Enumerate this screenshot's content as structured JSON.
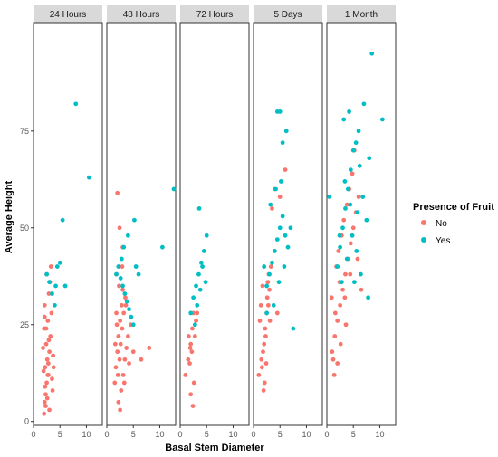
{
  "chart_data": {
    "type": "scatter",
    "facets": [
      "24 Hours",
      "48 Hours",
      "72 Hours",
      "5 Days",
      "1 Month"
    ],
    "xlabel": "Basal Stem Diameter",
    "ylabel": "Average Height",
    "xlim": [
      0,
      13
    ],
    "ylim": [
      -1,
      103
    ],
    "x_ticks": [
      0,
      5,
      10
    ],
    "y_ticks": [
      0,
      25,
      50,
      75
    ],
    "legend": {
      "title": "Presence of Fruit",
      "placement": "right"
    },
    "series": [
      {
        "name": "No",
        "color": "#F8766D",
        "points": {
          "24 Hours": [
            [
              2.0,
              2
            ],
            [
              2.1,
              5
            ],
            [
              2.3,
              7
            ],
            [
              2.5,
              10
            ],
            [
              2.8,
              12
            ],
            [
              2.2,
              14
            ],
            [
              2.6,
              16
            ],
            [
              3.0,
              18
            ],
            [
              2.4,
              20
            ],
            [
              3.2,
              22
            ],
            [
              2.0,
              24
            ],
            [
              2.7,
              26
            ],
            [
              3.4,
              28
            ],
            [
              2.1,
              30
            ],
            [
              2.9,
              33
            ],
            [
              3.1,
              36
            ],
            [
              2.5,
              38
            ],
            [
              3.3,
              40
            ],
            [
              2.2,
              9
            ],
            [
              2.8,
              15
            ],
            [
              3.5,
              11
            ],
            [
              1.8,
              19
            ],
            [
              3.6,
              8
            ],
            [
              2.3,
              4
            ],
            [
              2.9,
              21
            ],
            [
              1.9,
              13
            ],
            [
              3.7,
              17
            ],
            [
              2.6,
              6
            ],
            [
              3.0,
              3
            ],
            [
              2.4,
              24
            ],
            [
              2.1,
              27
            ],
            [
              3.8,
              14
            ],
            [
              2.7,
              12
            ]
          ],
          "48 Hours": [
            [
              1.5,
              10
            ],
            [
              1.7,
              14
            ],
            [
              2.0,
              18
            ],
            [
              2.2,
              22
            ],
            [
              2.5,
              26
            ],
            [
              2.8,
              30
            ],
            [
              3.0,
              34
            ],
            [
              1.8,
              38
            ],
            [
              2.1,
              12
            ],
            [
              2.4,
              16
            ],
            [
              2.6,
              20
            ],
            [
              2.9,
              24
            ],
            [
              3.2,
              28
            ],
            [
              3.5,
              32
            ],
            [
              1.6,
              20
            ],
            [
              1.9,
              25
            ],
            [
              2.3,
              35
            ],
            [
              2.7,
              8
            ],
            [
              3.1,
              12
            ],
            [
              3.4,
              16
            ],
            [
              3.7,
              19
            ],
            [
              4.0,
              22
            ],
            [
              4.5,
              25
            ],
            [
              5.0,
              18
            ],
            [
              6.5,
              16
            ],
            [
              8.0,
              19
            ],
            [
              2.0,
              59
            ],
            [
              2.4,
              50
            ],
            [
              3.0,
              45
            ],
            [
              2.2,
              5
            ],
            [
              2.5,
              3
            ],
            [
              3.6,
              30
            ],
            [
              4.2,
              15
            ],
            [
              1.8,
              28
            ],
            [
              2.9,
              40
            ],
            [
              3.3,
              10
            ]
          ],
          "72 Hours": [
            [
              1.0,
              12
            ],
            [
              1.5,
              16
            ],
            [
              2.0,
              20
            ],
            [
              2.3,
              24
            ],
            [
              2.5,
              28
            ],
            [
              1.8,
              15
            ],
            [
              2.8,
              22
            ],
            [
              3.0,
              26
            ],
            [
              2.2,
              18
            ],
            [
              2.6,
              10
            ],
            [
              2.0,
              7
            ],
            [
              2.4,
              4
            ],
            [
              1.6,
              22
            ],
            [
              3.2,
              28
            ],
            [
              1.9,
              19
            ]
          ],
          "5 Days": [
            [
              1.0,
              12
            ],
            [
              1.5,
              16
            ],
            [
              2.0,
              20
            ],
            [
              2.2,
              24
            ],
            [
              2.5,
              28
            ],
            [
              2.8,
              30
            ],
            [
              3.0,
              34
            ],
            [
              1.8,
              18
            ],
            [
              2.3,
              22
            ],
            [
              1.2,
              26
            ],
            [
              1.6,
              14
            ],
            [
              2.1,
              10
            ],
            [
              2.7,
              36
            ],
            [
              3.3,
              40
            ],
            [
              3.5,
              55
            ],
            [
              4.0,
              60
            ],
            [
              5.0,
              58
            ],
            [
              6.0,
              65
            ],
            [
              1.4,
              30
            ],
            [
              2.6,
              32
            ],
            [
              3.1,
              26
            ],
            [
              1.9,
              8
            ],
            [
              2.4,
              15
            ],
            [
              2.9,
              38
            ],
            [
              4.5,
              28
            ],
            [
              1.7,
              35
            ]
          ],
          "1 Month": [
            [
              1.0,
              18
            ],
            [
              1.5,
              22
            ],
            [
              2.0,
              26
            ],
            [
              2.5,
              30
            ],
            [
              3.0,
              34
            ],
            [
              3.5,
              38
            ],
            [
              4.0,
              42
            ],
            [
              4.5,
              46
            ],
            [
              5.0,
              50
            ],
            [
              5.5,
              54
            ],
            [
              6.0,
              58
            ],
            [
              1.8,
              40
            ],
            [
              2.2,
              44
            ],
            [
              2.8,
              48
            ],
            [
              3.2,
              52
            ],
            [
              3.8,
              56
            ],
            [
              4.2,
              60
            ],
            [
              4.8,
              64
            ],
            [
              5.2,
              70
            ],
            [
              1.2,
              16
            ],
            [
              1.6,
              28
            ],
            [
              2.4,
              36
            ],
            [
              3.4,
              32
            ],
            [
              4.4,
              38
            ],
            [
              5.8,
              42
            ],
            [
              2.6,
              20
            ],
            [
              3.6,
              25
            ],
            [
              0.9,
              32
            ],
            [
              6.5,
              34
            ],
            [
              2.0,
              15
            ],
            [
              1.4,
              12
            ]
          ]
        }
      },
      {
        "name": "Yes",
        "color": "#00BFC4",
        "points": {
          "24 Hours": [
            [
              2.5,
              38
            ],
            [
              3.0,
              36
            ],
            [
              3.5,
              33
            ],
            [
              4.0,
              30
            ],
            [
              4.5,
              40
            ],
            [
              5.0,
              41
            ],
            [
              5.5,
              52
            ],
            [
              4.2,
              35
            ],
            [
              6.0,
              35
            ],
            [
              8.0,
              82
            ],
            [
              10.5,
              63
            ]
          ],
          "48 Hours": [
            [
              1.8,
              38
            ],
            [
              2.2,
              40
            ],
            [
              2.6,
              37
            ],
            [
              3.0,
              35
            ],
            [
              3.4,
              33
            ],
            [
              3.8,
              31
            ],
            [
              4.2,
              29
            ],
            [
              4.6,
              27
            ],
            [
              5.0,
              25
            ],
            [
              5.5,
              40
            ],
            [
              6.0,
              38
            ],
            [
              3.2,
              45
            ],
            [
              4.0,
              48
            ],
            [
              5.2,
              52
            ],
            [
              10.5,
              45
            ],
            [
              13.0,
              60
            ],
            [
              2.8,
              42
            ]
          ],
          "72 Hours": [
            [
              2.0,
              28
            ],
            [
              2.5,
              32
            ],
            [
              3.0,
              35
            ],
            [
              3.5,
              38
            ],
            [
              4.0,
              41
            ],
            [
              4.5,
              44
            ],
            [
              5.0,
              48
            ],
            [
              3.2,
              30
            ],
            [
              3.8,
              34
            ],
            [
              4.2,
              40
            ],
            [
              4.8,
              36
            ],
            [
              2.8,
              25
            ],
            [
              3.6,
              55
            ]
          ],
          "5 Days": [
            [
              2.5,
              35
            ],
            [
              3.0,
              38
            ],
            [
              3.5,
              41
            ],
            [
              4.0,
              44
            ],
            [
              4.5,
              47
            ],
            [
              5.0,
              50
            ],
            [
              5.5,
              53
            ],
            [
              6.0,
              48
            ],
            [
              6.5,
              45
            ],
            [
              3.2,
              56
            ],
            [
              4.2,
              60
            ],
            [
              5.2,
              62
            ],
            [
              5.5,
              72
            ],
            [
              4.5,
              80
            ],
            [
              5.0,
              80
            ],
            [
              6.2,
              75
            ],
            [
              7.0,
              50
            ],
            [
              2.0,
              40
            ],
            [
              3.8,
              30
            ],
            [
              4.8,
              36
            ],
            [
              7.5,
              24
            ],
            [
              2.5,
              28
            ],
            [
              5.8,
              40
            ]
          ],
          "1 Month": [
            [
              2.0,
              40
            ],
            [
              2.5,
              45
            ],
            [
              3.0,
              50
            ],
            [
              3.5,
              55
            ],
            [
              4.0,
              60
            ],
            [
              4.5,
              65
            ],
            [
              5.0,
              70
            ],
            [
              5.5,
              72
            ],
            [
              6.0,
              75
            ],
            [
              3.2,
              78
            ],
            [
              4.2,
              80
            ],
            [
              7.0,
              82
            ],
            [
              8.5,
              95
            ],
            [
              10.5,
              78
            ],
            [
              2.8,
              36
            ],
            [
              3.8,
              42
            ],
            [
              4.8,
              48
            ],
            [
              5.8,
              54
            ],
            [
              6.8,
              58
            ],
            [
              7.5,
              52
            ],
            [
              6.4,
              38
            ],
            [
              7.8,
              32
            ],
            [
              0.5,
              58
            ],
            [
              5.2,
              36
            ],
            [
              4.4,
              56
            ],
            [
              3.4,
              62
            ],
            [
              2.4,
              48
            ],
            [
              6.2,
              66
            ],
            [
              5.6,
              44
            ],
            [
              8.0,
              68
            ]
          ]
        }
      }
    ]
  }
}
